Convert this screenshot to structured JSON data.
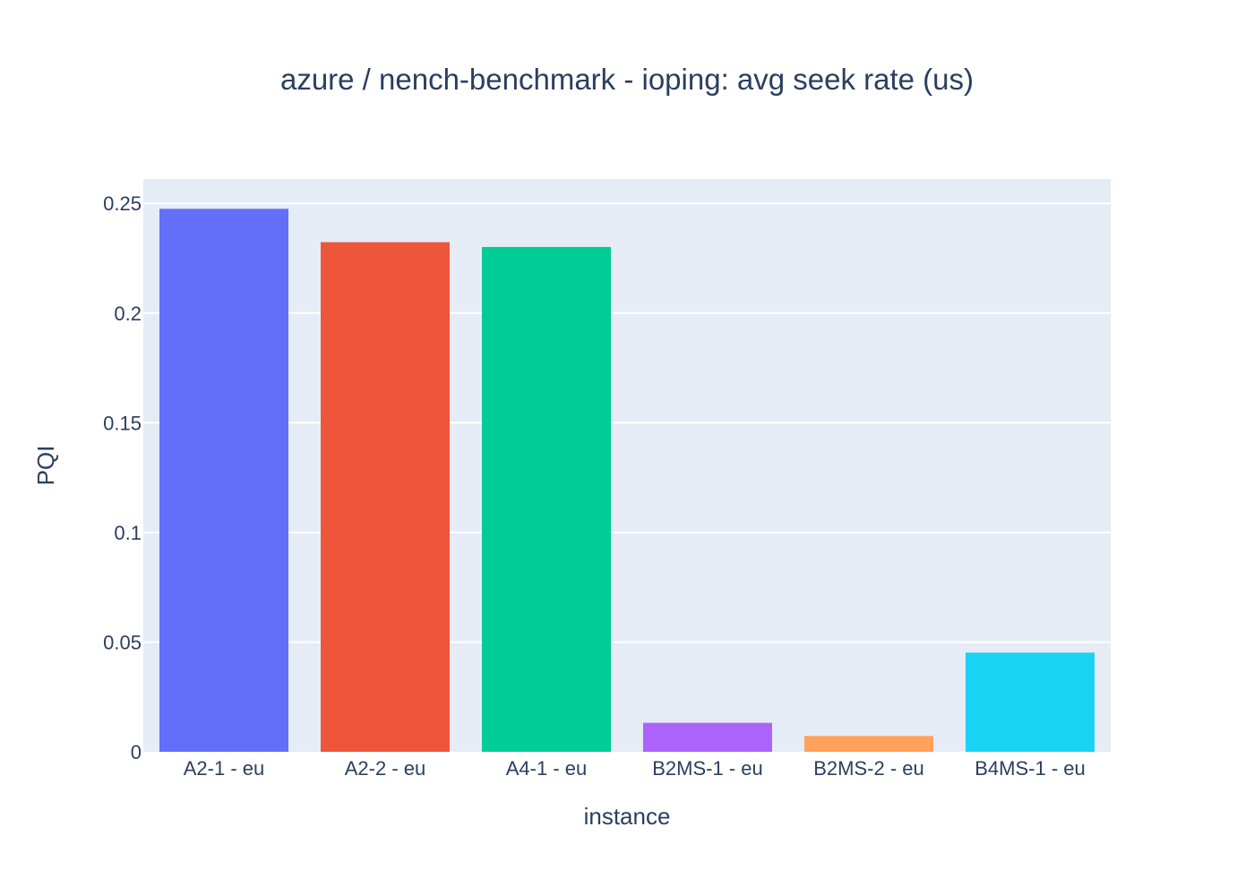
{
  "chart_data": {
    "type": "bar",
    "title": "azure / nench-benchmark - ioping: avg seek rate (us)",
    "xlabel": "instance",
    "ylabel": "PQI",
    "categories": [
      "A2-1 - eu",
      "A2-2 - eu",
      "A4-1 - eu",
      "B2MS-1 - eu",
      "B2MS-2 - eu",
      "B4MS-1 - eu"
    ],
    "values": [
      0.2475,
      0.2323,
      0.2301,
      0.0132,
      0.0072,
      0.0452
    ],
    "bar_colors": [
      "#636efa",
      "#ef553b",
      "#00cc96",
      "#ab63fa",
      "#ffa15a",
      "#19d3f3"
    ],
    "ylim": [
      0,
      0.2611
    ],
    "yticks": [
      0,
      0.05,
      0.1,
      0.15,
      0.2,
      0.25
    ],
    "ytick_labels": [
      "0",
      "0.05",
      "0.1",
      "0.15",
      "0.2",
      "0.25"
    ],
    "grid": true,
    "legend": "none"
  }
}
